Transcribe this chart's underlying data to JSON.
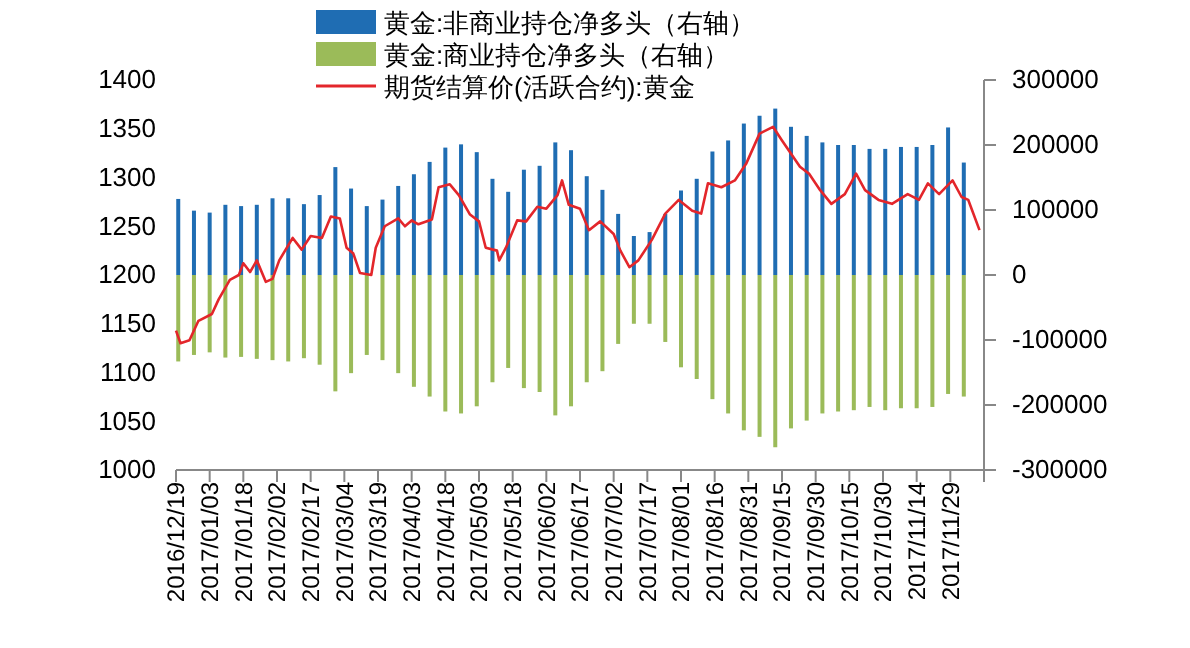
{
  "chart_data": {
    "type": "bar",
    "x": [
      "2016-12-20",
      "2016-12-27",
      "2017-01-03",
      "2017-01-10",
      "2017-01-17",
      "2017-01-24",
      "2017-01-31",
      "2017-02-07",
      "2017-02-14",
      "2017-02-21",
      "2017-02-28",
      "2017-03-07",
      "2017-03-14",
      "2017-03-21",
      "2017-03-28",
      "2017-04-04",
      "2017-04-11",
      "2017-04-18",
      "2017-04-25",
      "2017-05-02",
      "2017-05-09",
      "2017-05-16",
      "2017-05-23",
      "2017-05-30",
      "2017-06-06",
      "2017-06-13",
      "2017-06-20",
      "2017-06-27",
      "2017-07-04",
      "2017-07-11",
      "2017-07-18",
      "2017-07-25",
      "2017-08-01",
      "2017-08-08",
      "2017-08-15",
      "2017-08-22",
      "2017-08-29",
      "2017-09-05",
      "2017-09-12",
      "2017-09-19",
      "2017-09-26",
      "2017-10-03",
      "2017-10-10",
      "2017-10-17",
      "2017-10-24",
      "2017-10-31",
      "2017-11-07",
      "2017-11-14",
      "2017-11-21",
      "2017-11-28",
      "2017-12-05"
    ],
    "series": [
      {
        "name": "黄金:非商业持仓净多头（右轴）",
        "axis": "y2",
        "color": "#1f6db3",
        "values": [
          117000,
          99000,
          96000,
          108000,
          106000,
          108000,
          118000,
          118000,
          109000,
          123000,
          166000,
          133000,
          106000,
          116000,
          137000,
          155000,
          174000,
          196000,
          201000,
          189000,
          148000,
          128000,
          162000,
          168000,
          204000,
          192000,
          152000,
          131000,
          94000,
          60000,
          66000,
          94000,
          130000,
          148000,
          190000,
          207000,
          233000,
          245000,
          256000,
          228000,
          214000,
          204000,
          200000,
          200000,
          194000,
          194000,
          197000,
          197000,
          200000,
          227000,
          173000
        ]
      },
      {
        "name": "黄金:商业持仓净多头（右轴）",
        "axis": "y2",
        "color": "#9bbb59",
        "values": [
          -133000,
          -123000,
          -119000,
          -127000,
          -126000,
          -129000,
          -131000,
          -133000,
          -128000,
          -138000,
          -179000,
          -151000,
          -123000,
          -131000,
          -151000,
          -172000,
          -187000,
          -210000,
          -213000,
          -202000,
          -165000,
          -143000,
          -174000,
          -180000,
          -216000,
          -202000,
          -165000,
          -148000,
          -106000,
          -75000,
          -75000,
          -103000,
          -142000,
          -160000,
          -191000,
          -213000,
          -239000,
          -249000,
          -265000,
          -236000,
          -224000,
          -213000,
          -210000,
          -208000,
          -203000,
          -208000,
          -205000,
          -205000,
          -203000,
          -183000,
          -187000
        ]
      },
      {
        "name": "期货结算价(活跃合约):黄金",
        "type": "line",
        "color": "#e3262b",
        "x": [
          "2016-12-19",
          "2016-12-21",
          "2016-12-25",
          "2016-12-29",
          "2017-01-04",
          "2017-01-07",
          "2017-01-12",
          "2017-01-16",
          "2017-01-18",
          "2017-01-21",
          "2017-01-24",
          "2017-01-28",
          "2017-01-31",
          "2017-02-03",
          "2017-02-09",
          "2017-02-13",
          "2017-02-17",
          "2017-02-22",
          "2017-02-26",
          "2017-03-02",
          "2017-03-05",
          "2017-03-08",
          "2017-03-11",
          "2017-03-16",
          "2017-03-18",
          "2017-03-22",
          "2017-03-28",
          "2017-03-31",
          "2017-04-03",
          "2017-04-06",
          "2017-04-12",
          "2017-04-15",
          "2017-04-20",
          "2017-04-24",
          "2017-04-29",
          "2017-05-03",
          "2017-05-06",
          "2017-05-11",
          "2017-05-12",
          "2017-05-15",
          "2017-05-20",
          "2017-05-24",
          "2017-05-29",
          "2017-06-02",
          "2017-06-07",
          "2017-06-09",
          "2017-06-12",
          "2017-06-17",
          "2017-06-21",
          "2017-06-26",
          "2017-07-02",
          "2017-07-05",
          "2017-07-09",
          "2017-07-13",
          "2017-07-19",
          "2017-07-25",
          "2017-07-31",
          "2017-08-06",
          "2017-08-10",
          "2017-08-13",
          "2017-08-19",
          "2017-08-25",
          "2017-08-30",
          "2017-09-05",
          "2017-09-11",
          "2017-09-15",
          "2017-09-23",
          "2017-09-27",
          "2017-10-02",
          "2017-10-07",
          "2017-10-13",
          "2017-10-18",
          "2017-10-22",
          "2017-10-28",
          "2017-11-03",
          "2017-11-10",
          "2017-11-15",
          "2017-11-19",
          "2017-11-24",
          "2017-11-30",
          "2017-12-04",
          "2017-12-07",
          "2017-12-12"
        ],
        "values": [
          1143,
          1130,
          1133,
          1153,
          1160,
          1175,
          1195,
          1200,
          1212,
          1203,
          1215,
          1193,
          1196,
          1215,
          1238,
          1226,
          1240,
          1238,
          1260,
          1258,
          1228,
          1222,
          1202,
          1200,
          1228,
          1250,
          1258,
          1250,
          1256,
          1252,
          1257,
          1290,
          1293,
          1282,
          1262,
          1255,
          1228,
          1225,
          1215,
          1228,
          1256,
          1255,
          1270,
          1268,
          1282,
          1297,
          1272,
          1268,
          1246,
          1255,
          1242,
          1225,
          1208,
          1215,
          1236,
          1263,
          1277,
          1266,
          1263,
          1294,
          1290,
          1297,
          1314,
          1345,
          1352,
          1338,
          1311,
          1304,
          1287,
          1273,
          1283,
          1304,
          1287,
          1277,
          1273,
          1283,
          1277,
          1294,
          1283,
          1297,
          1280,
          1277,
          1246
        ]
      }
    ],
    "xlim": [
      "2016-12-19",
      "2017-12-14"
    ],
    "xticks": [
      {
        "value": "2016-12-19",
        "label": "2016/12/19"
      },
      {
        "value": "2017-01-03",
        "label": "2017/01/03"
      },
      {
        "value": "2017-01-18",
        "label": "2017/01/18"
      },
      {
        "value": "2017-02-02",
        "label": "2017/02/02"
      },
      {
        "value": "2017-02-17",
        "label": "2017/02/17"
      },
      {
        "value": "2017-03-04",
        "label": "2017/03/04"
      },
      {
        "value": "2017-03-19",
        "label": "2017/03/19"
      },
      {
        "value": "2017-04-03",
        "label": "2017/04/03"
      },
      {
        "value": "2017-04-18",
        "label": "2017/04/18"
      },
      {
        "value": "2017-05-03",
        "label": "2017/05/03"
      },
      {
        "value": "2017-05-18",
        "label": "2017/05/18"
      },
      {
        "value": "2017-06-02",
        "label": "2017/06/02"
      },
      {
        "value": "2017-06-17",
        "label": "2017/06/17"
      },
      {
        "value": "2017-07-02",
        "label": "2017/07/02"
      },
      {
        "value": "2017-07-17",
        "label": "2017/07/17"
      },
      {
        "value": "2017-08-01",
        "label": "2017/08/01"
      },
      {
        "value": "2017-08-16",
        "label": "2017/08/16"
      },
      {
        "value": "2017-08-31",
        "label": "2017/08/31"
      },
      {
        "value": "2017-09-15",
        "label": "2017/09/15"
      },
      {
        "value": "2017-09-30",
        "label": "2017/09/30"
      },
      {
        "value": "2017-10-15",
        "label": "2017/10/15"
      },
      {
        "value": "2017-10-30",
        "label": "2017/10/30"
      },
      {
        "value": "2017-11-14",
        "label": "2017/11/14"
      },
      {
        "value": "2017-11-29",
        "label": "2017/11/29"
      },
      {
        "value": "2017-12-14",
        "label": null
      }
    ],
    "ylim": [
      1000,
      1400
    ],
    "yticks": [
      1000,
      1050,
      1100,
      1150,
      1200,
      1250,
      1300,
      1350,
      1400
    ],
    "y2lim": [
      -300000,
      300000
    ],
    "y2ticks": [
      -300000,
      -200000,
      -100000,
      0,
      100000,
      200000,
      300000
    ],
    "legend": "top",
    "grid": false
  }
}
